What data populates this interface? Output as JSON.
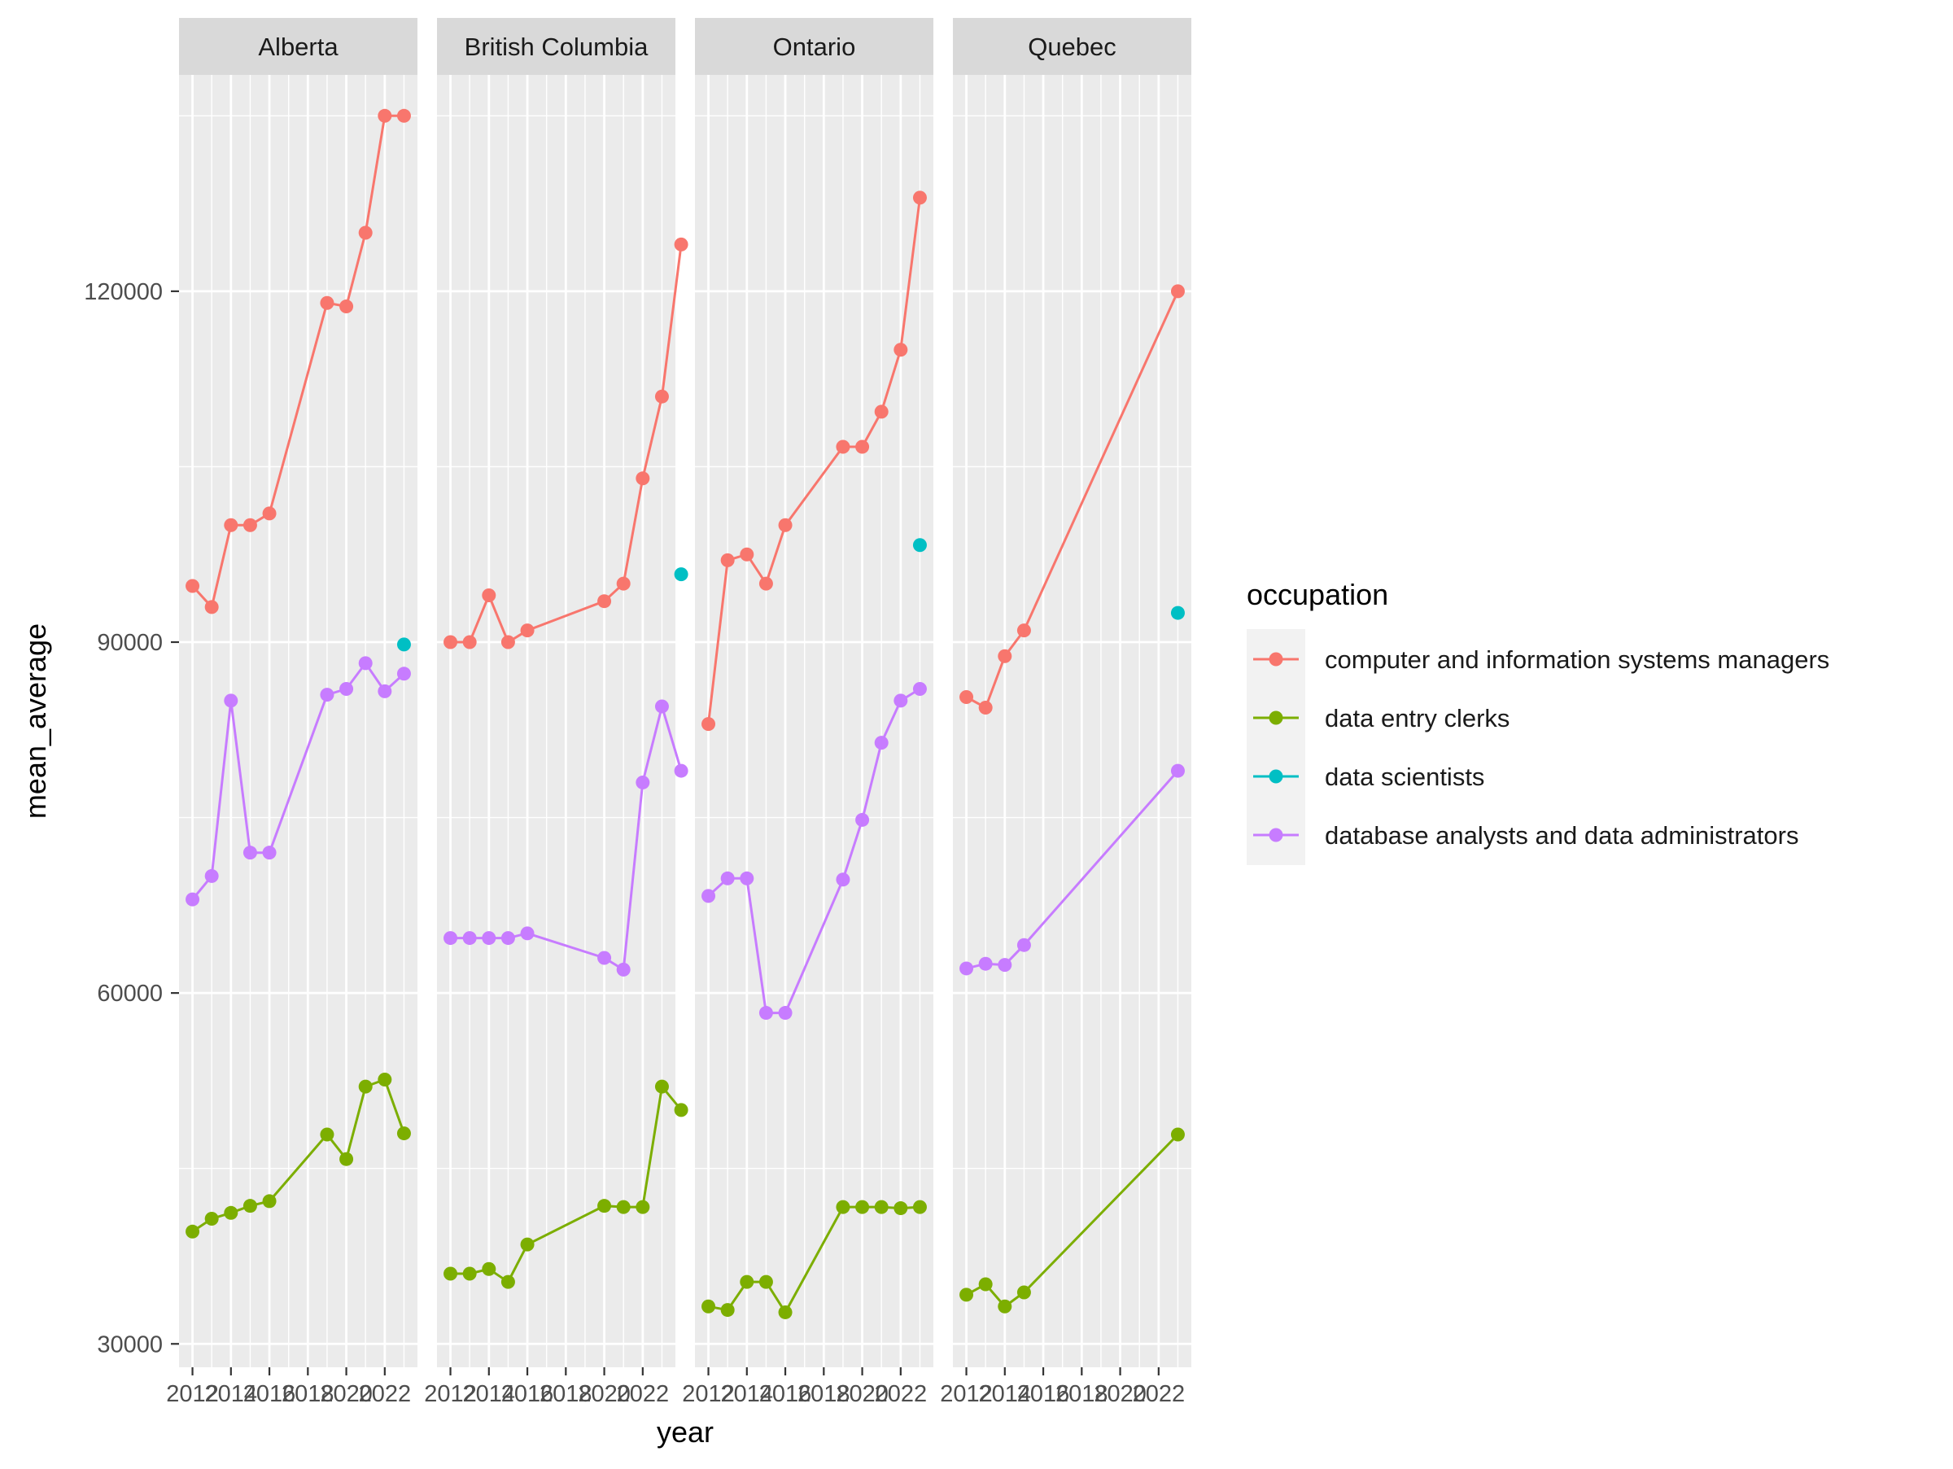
{
  "chart_data": {
    "type": "line",
    "subtype": "faceted line chart with points",
    "xlabel": "year",
    "ylabel": "mean_average",
    "x_ticks": [
      2012,
      2014,
      2016,
      2018,
      2020,
      2022
    ],
    "x_tick_labels": [
      "2012",
      "2014",
      "2016",
      "2018",
      "2020",
      "2022"
    ],
    "x_range": [
      2011.3,
      2023.7
    ],
    "y_ticks": [
      30000,
      60000,
      90000,
      120000
    ],
    "y_tick_labels": [
      "30000",
      "60000",
      "90000",
      "120000"
    ],
    "y_range": [
      28000,
      138500
    ],
    "grid": true,
    "legend": {
      "title": "occupation",
      "position": "right"
    },
    "series": [
      {
        "name": "computer and information systems managers",
        "color": "#F8766D"
      },
      {
        "name": "data entry clerks",
        "color": "#7CAE00"
      },
      {
        "name": "data scientists",
        "color": "#00BFC4"
      },
      {
        "name": "database analysts and data administrators",
        "color": "#C77CFF"
      }
    ],
    "facets": [
      {
        "name": "Alberta",
        "data": {
          "computer and information systems managers": [
            [
              2012,
              94800
            ],
            [
              2013,
              93000
            ],
            [
              2014,
              100000
            ],
            [
              2015,
              100000
            ],
            [
              2016,
              101000
            ],
            [
              2019,
              119000
            ],
            [
              2020,
              118700
            ],
            [
              2021,
              125000
            ],
            [
              2022,
              135000
            ],
            [
              2023,
              135000
            ]
          ],
          "data entry clerks": [
            [
              2012,
              39600
            ],
            [
              2013,
              40700
            ],
            [
              2014,
              41200
            ],
            [
              2015,
              41800
            ],
            [
              2016,
              42200
            ],
            [
              2019,
              47900
            ],
            [
              2020,
              45800
            ],
            [
              2021,
              52000
            ],
            [
              2022,
              52600
            ],
            [
              2023,
              48000
            ]
          ],
          "data scientists": [
            [
              2023,
              89800
            ]
          ],
          "database analysts and data administrators": [
            [
              2012,
              68000
            ],
            [
              2013,
              70000
            ],
            [
              2014,
              85000
            ],
            [
              2015,
              72000
            ],
            [
              2016,
              72000
            ],
            [
              2019,
              85500
            ],
            [
              2020,
              86000
            ],
            [
              2021,
              88200
            ],
            [
              2022,
              85800
            ],
            [
              2023,
              87300
            ]
          ]
        }
      },
      {
        "name": "British Columbia",
        "data": {
          "computer and information systems managers": [
            [
              2012,
              90000
            ],
            [
              2013,
              90000
            ],
            [
              2014,
              94000
            ],
            [
              2015,
              90000
            ],
            [
              2016,
              91000
            ],
            [
              2020,
              93500
            ],
            [
              2021,
              95000
            ],
            [
              2022,
              104000
            ],
            [
              2023,
              111000
            ],
            [
              2024,
              124000
            ]
          ],
          "data entry clerks": [
            [
              2012,
              36000
            ],
            [
              2013,
              36000
            ],
            [
              2014,
              36400
            ],
            [
              2015,
              35300
            ],
            [
              2016,
              38500
            ],
            [
              2020,
              41800
            ],
            [
              2021,
              41700
            ],
            [
              2022,
              41700
            ],
            [
              2023,
              52000
            ],
            [
              2024,
              50000
            ]
          ],
          "data scientists": [
            [
              2024,
              95800
            ]
          ],
          "database analysts and data administrators": [
            [
              2012,
              64700
            ],
            [
              2013,
              64700
            ],
            [
              2014,
              64700
            ],
            [
              2015,
              64700
            ],
            [
              2016,
              65100
            ],
            [
              2020,
              63000
            ],
            [
              2021,
              62000
            ],
            [
              2022,
              78000
            ],
            [
              2023,
              84500
            ],
            [
              2024,
              79000
            ]
          ]
        }
      },
      {
        "name": "Ontario",
        "data": {
          "computer and information systems managers": [
            [
              2012,
              83000
            ],
            [
              2013,
              97000
            ],
            [
              2014,
              97500
            ],
            [
              2015,
              95000
            ],
            [
              2016,
              100000
            ],
            [
              2019,
              106700
            ],
            [
              2020,
              106700
            ],
            [
              2021,
              109700
            ],
            [
              2022,
              115000
            ],
            [
              2023,
              128000
            ]
          ],
          "data entry clerks": [
            [
              2012,
              33200
            ],
            [
              2013,
              32900
            ],
            [
              2014,
              35300
            ],
            [
              2015,
              35300
            ],
            [
              2016,
              32700
            ],
            [
              2019,
              41700
            ],
            [
              2020,
              41700
            ],
            [
              2021,
              41700
            ],
            [
              2022,
              41600
            ],
            [
              2023,
              41700
            ]
          ],
          "data scientists": [
            [
              2023,
              98300
            ]
          ],
          "database analysts and data administrators": [
            [
              2012,
              68300
            ],
            [
              2013,
              69800
            ],
            [
              2014,
              69800
            ],
            [
              2015,
              58300
            ],
            [
              2016,
              58300
            ],
            [
              2019,
              69700
            ],
            [
              2020,
              74800
            ],
            [
              2021,
              81400
            ],
            [
              2022,
              85000
            ],
            [
              2023,
              86000
            ]
          ]
        }
      },
      {
        "name": "Quebec",
        "data": {
          "computer and information systems managers": [
            [
              2012,
              85300
            ],
            [
              2013,
              84400
            ],
            [
              2014,
              88800
            ],
            [
              2015,
              91000
            ],
            [
              2023,
              120000
            ]
          ],
          "data entry clerks": [
            [
              2012,
              34200
            ],
            [
              2013,
              35100
            ],
            [
              2014,
              33200
            ],
            [
              2015,
              34400
            ],
            [
              2023,
              47900
            ]
          ],
          "data scientists": [
            [
              2023,
              92500
            ]
          ],
          "database analysts and data administrators": [
            [
              2012,
              62100
            ],
            [
              2013,
              62500
            ],
            [
              2014,
              62400
            ],
            [
              2015,
              64100
            ],
            [
              2023,
              79000
            ]
          ]
        }
      }
    ]
  }
}
